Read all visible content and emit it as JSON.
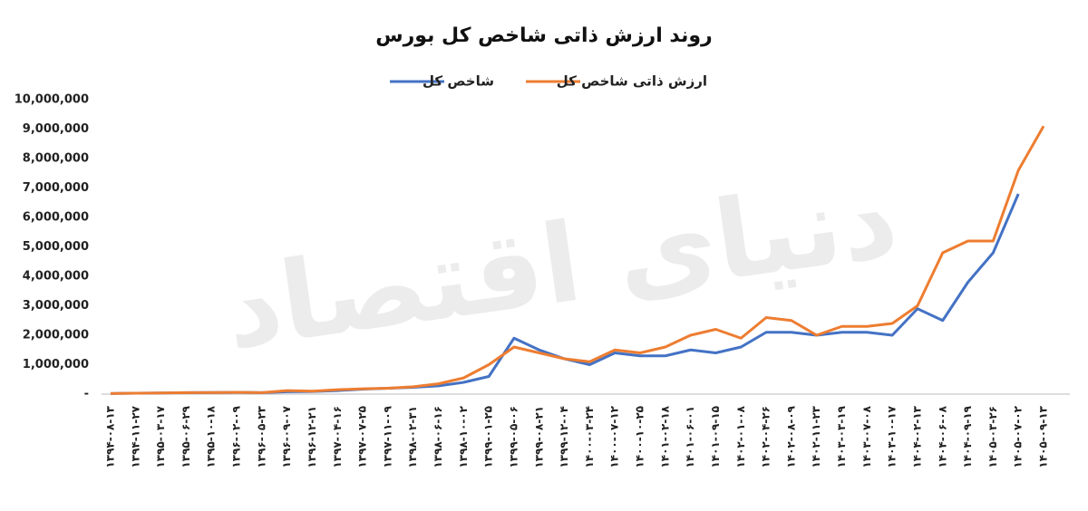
{
  "chart_data": {
    "type": "line",
    "title": "روند ارزش ذاتی شاخص کل بورس",
    "watermark": "دنیای اقتصاد",
    "categories": [
      "۱۳۹۴-۰۸-۱۳",
      "۱۳۹۴-۱۱-۲۷",
      "۱۳۹۵-۰۳-۱۷",
      "۱۳۹۵-۰۶-۲۹",
      "۱۳۹۵-۱۰-۱۸",
      "۱۳۹۶-۰۲-۰۹",
      "۱۳۹۶-۰۵-۲۳",
      "۱۳۹۶-۰۹-۰۷",
      "۱۳۹۶-۱۲-۲۱",
      "۱۳۹۷-۰۴-۱۶",
      "۱۳۹۷-۰۷-۲۵",
      "۱۳۹۷-۱۱-۰۹",
      "۱۳۹۸-۰۲-۳۱",
      "۱۳۹۸-۰۶-۱۶",
      "۱۳۹۸-۱۰-۰۲",
      "۱۳۹۹-۰۱-۲۵",
      "۱۳۹۹-۰۵-۰۶",
      "۱۳۹۹-۰۸-۲۱",
      "۱۳۹۹-۱۲-۰۴",
      "۱۴۰۰-۰۳-۲۴",
      "۱۴۰۰-۰۷-۱۲",
      "۱۴۰۰-۱۰-۲۵",
      "۱۴۰۱-۰۲-۱۸",
      "۱۴۰۱-۰۶-۰۱",
      "۱۴۰۱-۰۹-۱۵",
      "۱۴۰۲-۰۱-۰۸",
      "۱۴۰۲-۰۴-۲۶",
      "۱۴۰۲-۰۸-۰۹",
      "۱۴۰۲-۱۱-۲۳",
      "۱۴۰۳-۰۳-۱۹",
      "۱۴۰۳-۰۷-۰۸",
      "۱۴۰۳-۱۰-۱۷",
      "۱۴۰۴-۰۲-۱۳",
      "۱۴۰۴-۰۶-۰۸",
      "۱۴۰۴-۰۹-۱۹",
      "۱۴۰۵-۰۳-۲۶",
      "۱۴۰۵-۰۷-۰۲",
      "۱۴۰۵-۰۹-۱۳"
    ],
    "series": [
      {
        "name": "شاخص کل",
        "color": "#4472c4",
        "values": [
          20000,
          30000,
          40000,
          50000,
          55000,
          60000,
          50000,
          80000,
          90000,
          120000,
          170000,
          200000,
          230000,
          280000,
          400000,
          600000,
          1900000,
          1500000,
          1200000,
          1000000,
          1400000,
          1300000,
          1300000,
          1500000,
          1400000,
          1600000,
          2100000,
          2100000,
          2000000,
          2100000,
          2100000,
          2000000,
          2900000,
          2500000,
          3800000,
          4800000,
          6800000,
          null
        ]
      },
      {
        "name": "ارزش ذاتی شاخص کل",
        "color": "#ed7d31",
        "values": [
          20000,
          30000,
          40000,
          50000,
          55000,
          60000,
          50000,
          120000,
          100000,
          150000,
          180000,
          200000,
          250000,
          350000,
          550000,
          1000000,
          1600000,
          1400000,
          1200000,
          1100000,
          1500000,
          1400000,
          1600000,
          2000000,
          2200000,
          1900000,
          2600000,
          2500000,
          2000000,
          2300000,
          2300000,
          2400000,
          3000000,
          4800000,
          5200000,
          5200000,
          7600000,
          9100000
        ]
      }
    ],
    "ylim": [
      0,
      10000000
    ],
    "yticks": [
      {
        "value": 0,
        "label": "-"
      },
      {
        "value": 1000000,
        "label": "1,000,000"
      },
      {
        "value": 2000000,
        "label": "2,000,000"
      },
      {
        "value": 3000000,
        "label": "3,000,000"
      },
      {
        "value": 4000000,
        "label": "4,000,000"
      },
      {
        "value": 5000000,
        "label": "5,000,000"
      },
      {
        "value": 6000000,
        "label": "6,000,000"
      },
      {
        "value": 7000000,
        "label": "7,000,000"
      },
      {
        "value": 8000000,
        "label": "8,000,000"
      },
      {
        "value": 9000000,
        "label": "9,000,000"
      },
      {
        "value": 10000000,
        "label": "10,000,000"
      }
    ],
    "grid": false
  }
}
